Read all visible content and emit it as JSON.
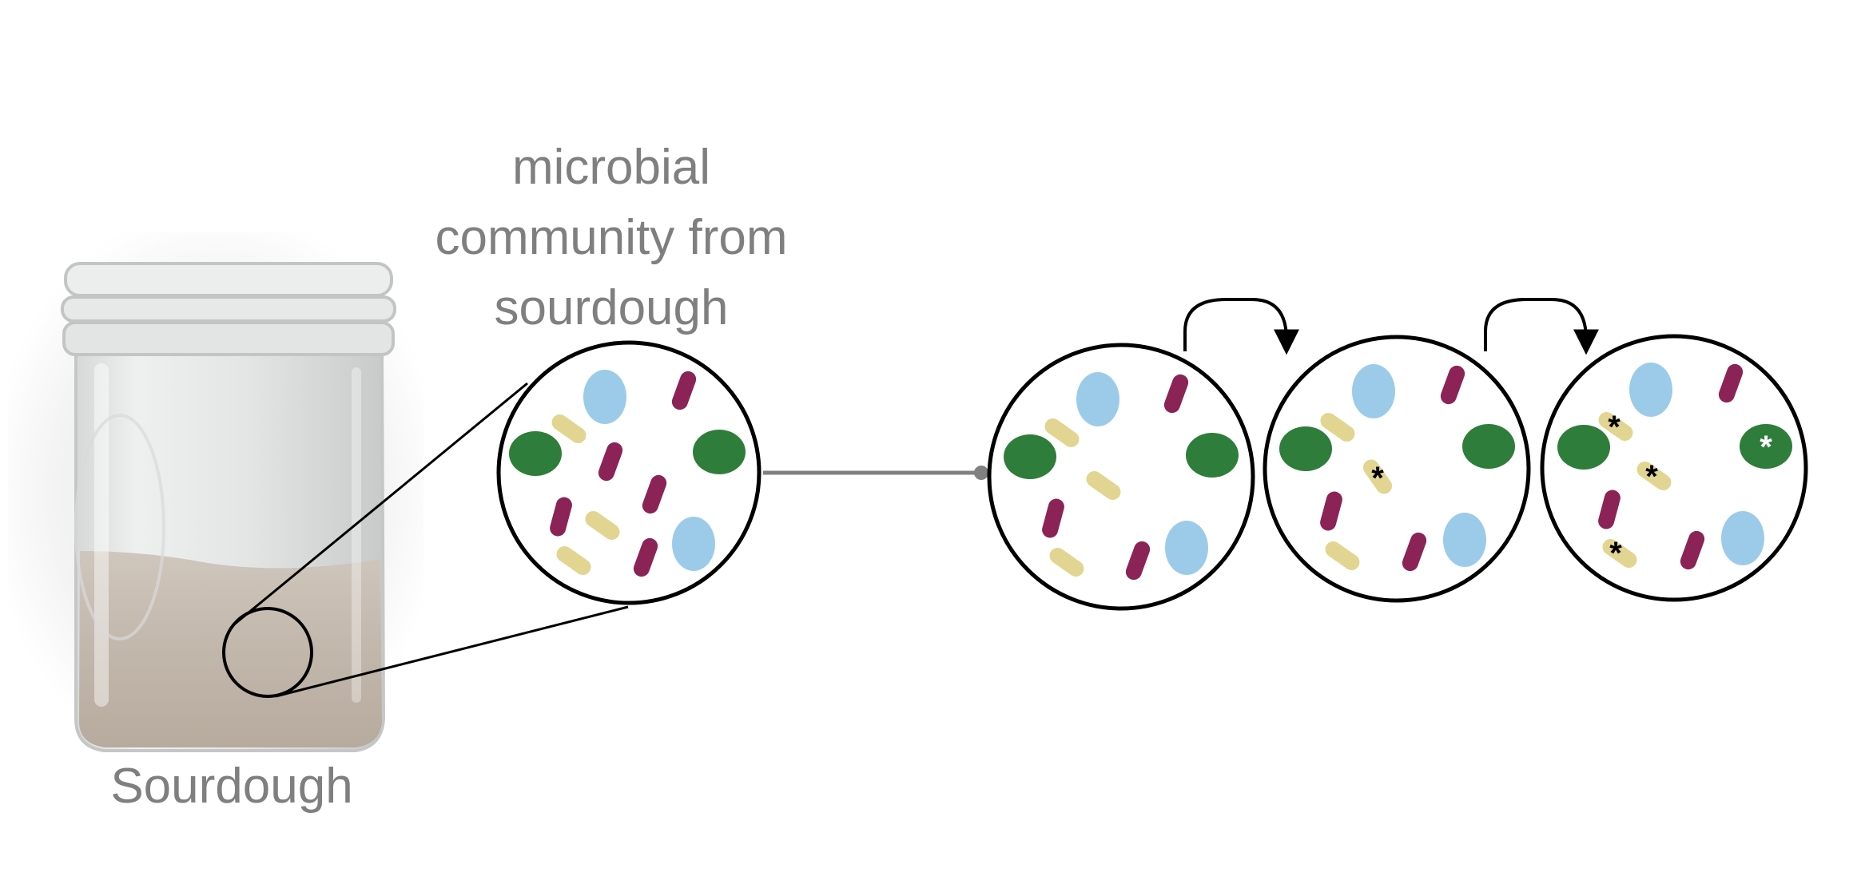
{
  "jar": {
    "label": "Sourdough"
  },
  "community": {
    "title_lines": [
      "microbial",
      "community from",
      "sourdough"
    ]
  },
  "colors": {
    "green": "#2e7d3a",
    "blue": "#9ccbea",
    "maroon": "#8b2356",
    "yellow": "#e2d591",
    "outline": "#000000",
    "text": "#7f7f7f",
    "connector": "#808080"
  },
  "marks": {
    "mutation": "*"
  }
}
